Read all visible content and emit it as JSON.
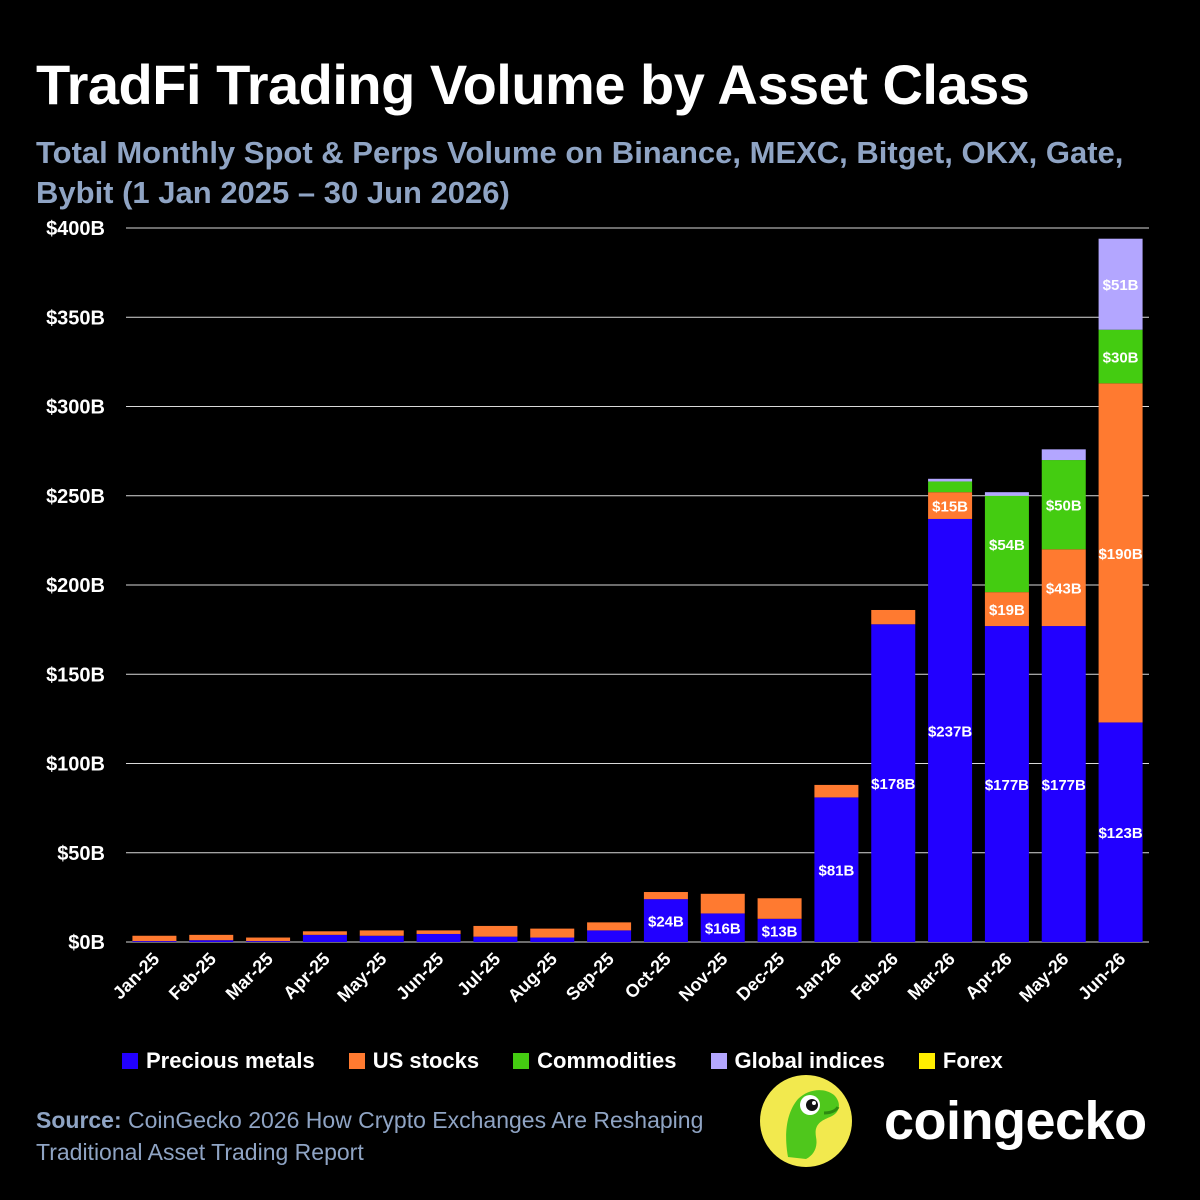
{
  "title": "TradFi Trading Volume by Asset Class",
  "subtitle": "Total Monthly Spot & Perps Volume on Binance, MEXC, Bitget, OKX, Gate, Bybit (1 Jan 2025 – 30 Jun 2026)",
  "source": {
    "label": "Source:",
    "text": "CoinGecko 2026 How Crypto Exchanges Are Reshaping Traditional Asset Trading Report"
  },
  "brand": {
    "wordmark": "coingecko",
    "logo_icon": "gecko-logo-icon"
  },
  "colors": {
    "background": "#000000",
    "gridline": "#ffffff",
    "subtitle": "#8fa4c4",
    "precious_metals": "#2200ff",
    "us_stocks": "#ff7a30",
    "commodities": "#44cc11",
    "global_indices": "#b3a6ff",
    "forex": "#ffee00"
  },
  "chart_data": {
    "type": "bar",
    "stacked": true,
    "categories": [
      "Jan-25",
      "Feb-25",
      "Mar-25",
      "Apr-25",
      "May-25",
      "Jun-25",
      "Jul-25",
      "Aug-25",
      "Sep-25",
      "Oct-25",
      "Nov-25",
      "Dec-25",
      "Jan-26",
      "Feb-26",
      "Mar-26",
      "Apr-26",
      "May-26",
      "Jun-26"
    ],
    "series": [
      {
        "name": "Precious metals",
        "color": "#2200ff",
        "values": [
          0.5,
          1,
          0.5,
          4,
          3.5,
          4.5,
          3,
          2.5,
          6.5,
          24,
          16,
          13,
          81,
          178,
          237,
          177,
          177,
          123
        ],
        "labels": [
          "",
          "",
          "",
          "",
          "",
          "",
          "",
          "",
          "",
          "$24B",
          "$16B",
          "$13B",
          "$81B",
          "$178B",
          "$237B",
          "$177B",
          "$177B",
          "$123B"
        ]
      },
      {
        "name": "US stocks",
        "color": "#ff7a30",
        "values": [
          3,
          3,
          2,
          2,
          3,
          2,
          6,
          5,
          4.5,
          4,
          11,
          11.5,
          7,
          8,
          15,
          19,
          43,
          190
        ],
        "labels": [
          "",
          "",
          "",
          "",
          "",
          "",
          "",
          "",
          "",
          "",
          "",
          "",
          "",
          "",
          "$15B",
          "$19B",
          "$43B",
          "$190B"
        ]
      },
      {
        "name": "Commodities",
        "color": "#44cc11",
        "values": [
          0,
          0,
          0,
          0,
          0,
          0,
          0,
          0,
          0,
          0,
          0,
          0,
          0,
          0,
          6,
          54,
          50,
          30
        ],
        "labels": [
          "",
          "",
          "",
          "",
          "",
          "",
          "",
          "",
          "",
          "",
          "",
          "",
          "",
          "",
          "",
          "$54B",
          "$50B",
          "$30B"
        ]
      },
      {
        "name": "Global indices",
        "color": "#b3a6ff",
        "values": [
          0,
          0,
          0,
          0,
          0,
          0,
          0,
          0,
          0,
          0,
          0,
          0,
          0,
          0,
          1.5,
          2,
          6,
          51
        ],
        "labels": [
          "",
          "",
          "",
          "",
          "",
          "",
          "",
          "",
          "",
          "",
          "",
          "",
          "",
          "",
          "",
          "",
          "",
          "$51B"
        ]
      },
      {
        "name": "Forex",
        "color": "#ffee00",
        "values": [
          0,
          0,
          0,
          0,
          0,
          0,
          0,
          0,
          0,
          0,
          0,
          0,
          0,
          0,
          0,
          0,
          0,
          0
        ],
        "labels": [
          "",
          "",
          "",
          "",
          "",
          "",
          "",
          "",
          "",
          "",
          "",
          "",
          "",
          "",
          "",
          "",
          "",
          ""
        ]
      }
    ],
    "ylim": [
      0,
      400
    ],
    "yticks": [
      0,
      50,
      100,
      150,
      200,
      250,
      300,
      350,
      400
    ],
    "ytick_labels": [
      "$0B",
      "$50B",
      "$100B",
      "$150B",
      "$200B",
      "$250B",
      "$300B",
      "$350B",
      "$400B"
    ],
    "grid": true,
    "legend_position": "bottom"
  }
}
